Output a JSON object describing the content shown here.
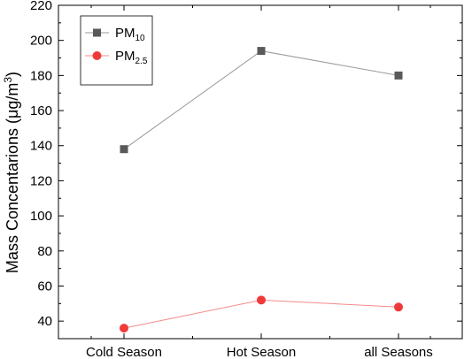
{
  "chart_data": {
    "type": "line",
    "categories": [
      "Cold Season",
      "Hot Season",
      "all Seasons"
    ],
    "series": [
      {
        "name": "PM10",
        "name_base": "PM",
        "name_sub": "10",
        "values": [
          138,
          194,
          180
        ],
        "color": "#595959",
        "line_color": "#9a9a9a",
        "marker": "square"
      },
      {
        "name": "PM2.5",
        "name_base": "PM",
        "name_sub": "2.5",
        "values": [
          36,
          52,
          48
        ],
        "color": "#f03a3a",
        "line_color": "#f58a8a",
        "marker": "circle"
      }
    ],
    "ylabel": "Mass Concentarions (μg/m3)",
    "ylabel_base": "Mass Concentarions (μg/m",
    "ylabel_sup": "3",
    "ylabel_close": ")",
    "xlabel": "",
    "title": "",
    "ylim": [
      30,
      220
    ],
    "yticks": [
      40,
      60,
      80,
      100,
      120,
      140,
      160,
      180,
      200,
      220
    ],
    "legend_position": "top-left",
    "grid": false
  }
}
